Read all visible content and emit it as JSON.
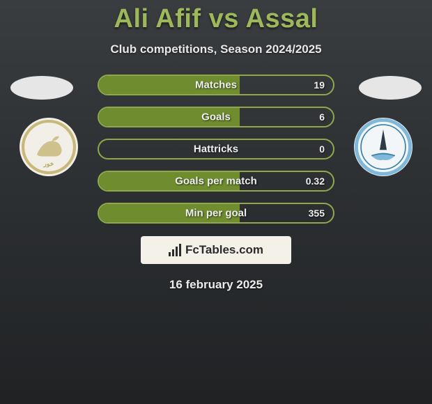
{
  "title": "Ali Afif vs Assal",
  "title_color": "#9db85a",
  "subtitle": "Club competitions, Season 2024/2025",
  "date": "16 february 2025",
  "bar_border_color": "#8fa84a",
  "bar_fill_color": "#6f8c2f",
  "stats": [
    {
      "label": "Matches",
      "value": "19",
      "fill_pct": 60
    },
    {
      "label": "Goals",
      "value": "6",
      "fill_pct": 60
    },
    {
      "label": "Hattricks",
      "value": "0",
      "fill_pct": 0
    },
    {
      "label": "Goals per match",
      "value": "0.32",
      "fill_pct": 60
    },
    {
      "label": "Min per goal",
      "value": "355",
      "fill_pct": 60
    }
  ],
  "footer_brand": "FcTables.com",
  "flag_bg": "#e6e6e6",
  "club_left": {
    "bg": "#f2efe8",
    "ring": "#c8b87a",
    "accent": "#b8a760"
  },
  "club_right": {
    "bg": "#f2f6f8",
    "ring": "#7fb8d8",
    "accent": "#3a7fa8"
  }
}
